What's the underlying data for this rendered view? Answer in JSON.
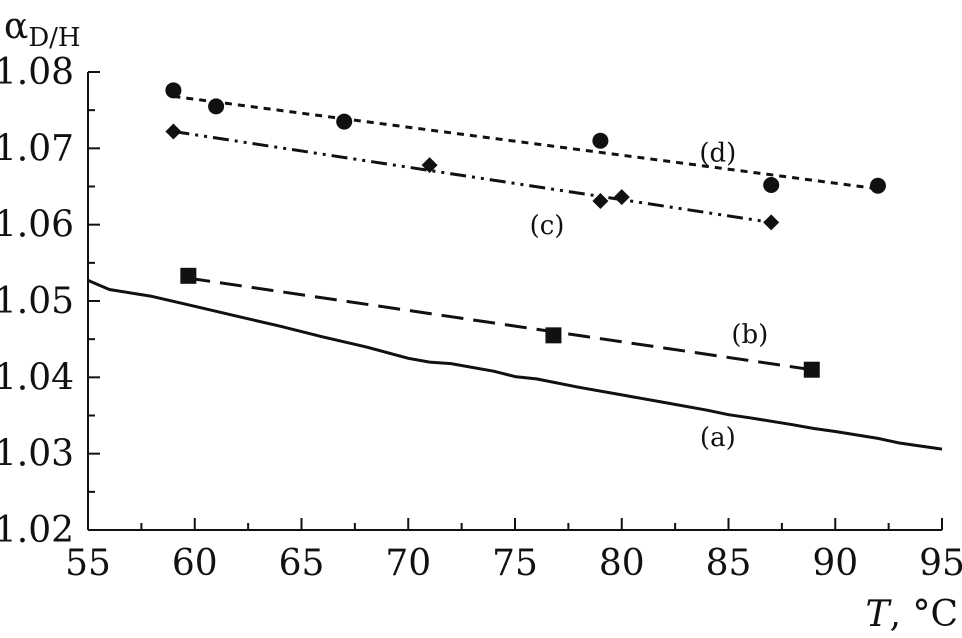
{
  "chart_data": {
    "type": "line",
    "xlabel": "T, °C",
    "xlabel_italic": "T",
    "xlabel_unit": ", °C",
    "ylabel_symbol": "α",
    "ylabel_subscript": "D/H",
    "xlim": [
      55,
      95
    ],
    "ylim": [
      1.02,
      1.08
    ],
    "xticks": [
      55,
      60,
      65,
      70,
      75,
      80,
      85,
      90,
      95
    ],
    "yticks": [
      1.02,
      1.03,
      1.04,
      1.05,
      1.06,
      1.07,
      1.08
    ],
    "xtick_labels": [
      "55",
      "60",
      "65",
      "70",
      "75",
      "80",
      "85",
      "90",
      "95"
    ],
    "ytick_labels": [
      "1.02",
      "1.03",
      "1.04",
      "1.05",
      "1.06",
      "1.07",
      "1.08"
    ],
    "grid": false,
    "color": "#111111",
    "series": [
      {
        "name": "(a)",
        "style": "solid",
        "marker": "none",
        "x": [
          55,
          56,
          58,
          60,
          62,
          64,
          66,
          68,
          70,
          71,
          72,
          74,
          75,
          76,
          78,
          80,
          82,
          84,
          85,
          86,
          88,
          89,
          90,
          92,
          93,
          95
        ],
        "y": [
          1.0527,
          1.0515,
          1.0506,
          1.0493,
          1.048,
          1.0467,
          1.0453,
          1.044,
          1.0425,
          1.042,
          1.0418,
          1.0408,
          1.0401,
          1.0398,
          1.0387,
          1.0377,
          1.0367,
          1.0357,
          1.0351,
          1.0347,
          1.0338,
          1.0333,
          1.0329,
          1.032,
          1.0314,
          1.0306
        ]
      },
      {
        "name": "(b)",
        "style": "dashed",
        "marker": "square",
        "points_x": [
          59.7,
          76.8,
          88.9
        ],
        "points_y": [
          1.0533,
          1.0455,
          1.041
        ],
        "fit_x": [
          59.7,
          88.9
        ],
        "fit_y": [
          1.053,
          1.041
        ]
      },
      {
        "name": "(c)",
        "style": "dash-dot-dot",
        "marker": "diamond",
        "points_x": [
          59,
          71,
          79,
          80,
          87
        ],
        "points_y": [
          1.0722,
          1.0678,
          1.0631,
          1.0636,
          1.0603
        ],
        "fit_x": [
          59,
          87
        ],
        "fit_y": [
          1.0722,
          1.0603
        ]
      },
      {
        "name": "(d)",
        "style": "dotted",
        "marker": "circle",
        "points_x": [
          59,
          61,
          67,
          79,
          87,
          92
        ],
        "points_y": [
          1.0776,
          1.0755,
          1.0735,
          1.071,
          1.0652,
          1.0651
        ],
        "fit_x": [
          59,
          92
        ],
        "fit_y": [
          1.0768,
          1.0647
        ]
      }
    ],
    "annotations": [
      "(a)",
      "(b)",
      "(c)",
      "(d)"
    ]
  }
}
